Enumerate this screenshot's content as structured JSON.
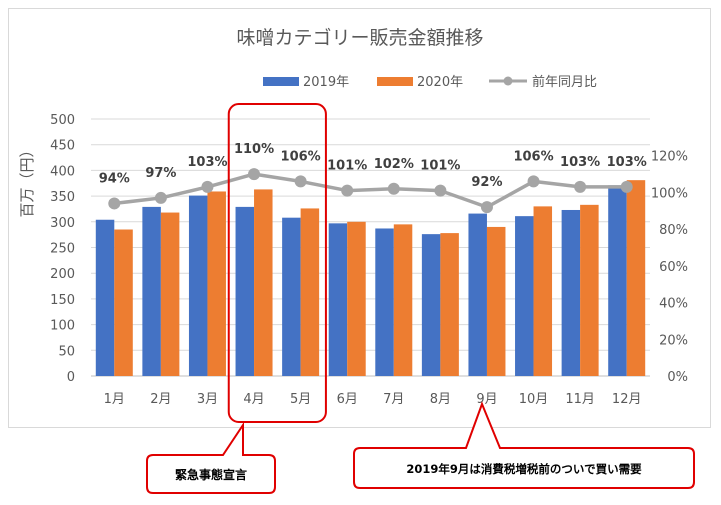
{
  "chart_data": {
    "type": "bar",
    "title": "味噌カテゴリー販売金額推移",
    "ylabel": "百万（円）",
    "y2label": "",
    "categories": [
      "1月",
      "2月",
      "3月",
      "4月",
      "5月",
      "6月",
      "7月",
      "8月",
      "9月",
      "10月",
      "11月",
      "12月"
    ],
    "series": [
      {
        "name": "2019年",
        "type": "bar",
        "axis": "left",
        "color": "#4472c4",
        "values": [
          304,
          329,
          351,
          329,
          308,
          297,
          287,
          276,
          316,
          311,
          323,
          371
        ]
      },
      {
        "name": "2020年",
        "type": "bar",
        "axis": "left",
        "color": "#ed7d31",
        "values": [
          285,
          318,
          359,
          363,
          326,
          300,
          295,
          278,
          290,
          330,
          333,
          381
        ]
      },
      {
        "name": "前年同月比",
        "type": "line",
        "axis": "right",
        "color": "#a5a5a5",
        "values": [
          94,
          97,
          103,
          110,
          106,
          101,
          102,
          101,
          92,
          106,
          103,
          103
        ],
        "labels": [
          "94%",
          "97%",
          "103%",
          "110%",
          "106%",
          "101%",
          "102%",
          "101%",
          "92%",
          "106%",
          "103%",
          "103%"
        ]
      }
    ],
    "yticks": [
      "0",
      "50",
      "100",
      "150",
      "200",
      "250",
      "300",
      "350",
      "400",
      "450",
      "500"
    ],
    "y2ticks": [
      "0%",
      "20%",
      "40%",
      "60%",
      "80%",
      "100%",
      "120%"
    ],
    "ylim": [
      0,
      500
    ],
    "y2lim": [
      0,
      140
    ],
    "grid": true,
    "legend_position": "top"
  },
  "annotations": {
    "highlight_months": [
      "4月",
      "5月"
    ],
    "callouts": [
      {
        "text": "緊急事態宣言",
        "target": "4月"
      },
      {
        "text": "2019年9月は消費税増税前のついで買い需要",
        "target": "9月"
      }
    ],
    "highlight_color": "#e00000"
  }
}
